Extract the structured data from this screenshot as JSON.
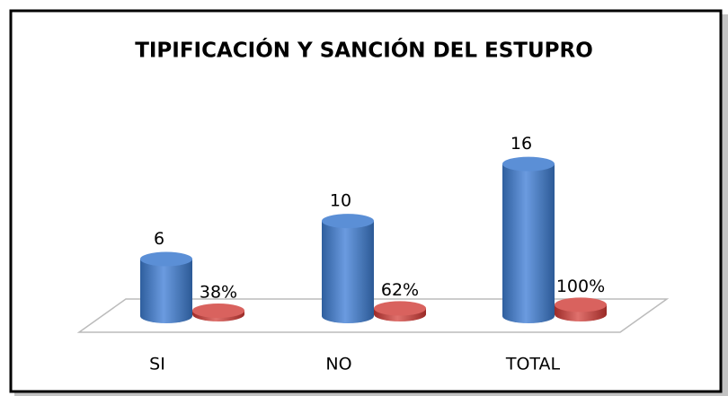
{
  "chart_data": {
    "type": "cylinder-bar",
    "title": "TIPIFICACIÓN Y SANCIÓN DEL ESTUPRO",
    "categories": [
      "SI",
      "NO",
      "TOTAL"
    ],
    "series": [
      {
        "color": "#4f81bd",
        "values": [
          6,
          10,
          16
        ],
        "value_labels": [
          "6",
          "10",
          "16"
        ]
      },
      {
        "color": "#c0504d",
        "values": [
          0.38,
          0.62,
          1
        ],
        "value_labels": [
          "38%",
          "62%",
          "100%"
        ]
      }
    ],
    "ylim": [
      0,
      17
    ]
  }
}
